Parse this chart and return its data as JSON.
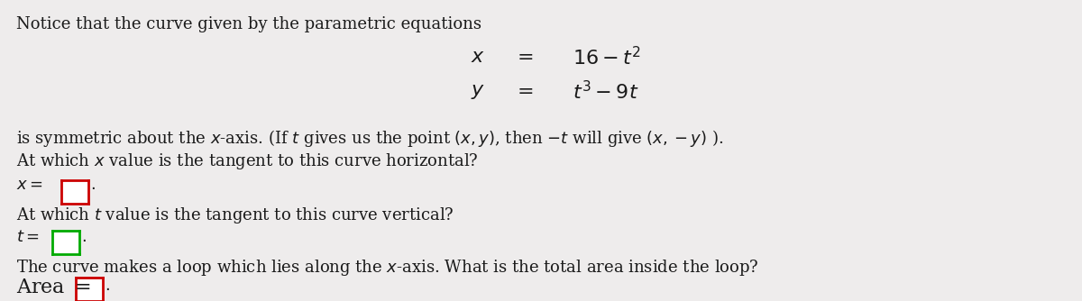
{
  "bg_color": "#eeecec",
  "text_color": "#1a1a1a",
  "title_text": "Notice that the curve given by the parametric equations",
  "sym_text": "is symmetric about the $x$-axis. (If $t$ gives us the point $(x, y)$, then $-t$ will give $(x, -y)$ ).",
  "horiz_q": "At which $x$ value is the tangent to this curve horizontal?",
  "x_label": "$x = $",
  "vert_q": "At which $t$ value is the tangent to this curve vertical?",
  "t_label": "$t = $",
  "loop_q": "The curve makes a loop which lies along the $x$-axis. What is the total area inside the loop?",
  "area_label": "Area $=$",
  "box1_color": "#cc0000",
  "box2_color": "#00aa00",
  "box3_color": "#cc0000",
  "eq_font_size": 16,
  "main_font_size": 13
}
